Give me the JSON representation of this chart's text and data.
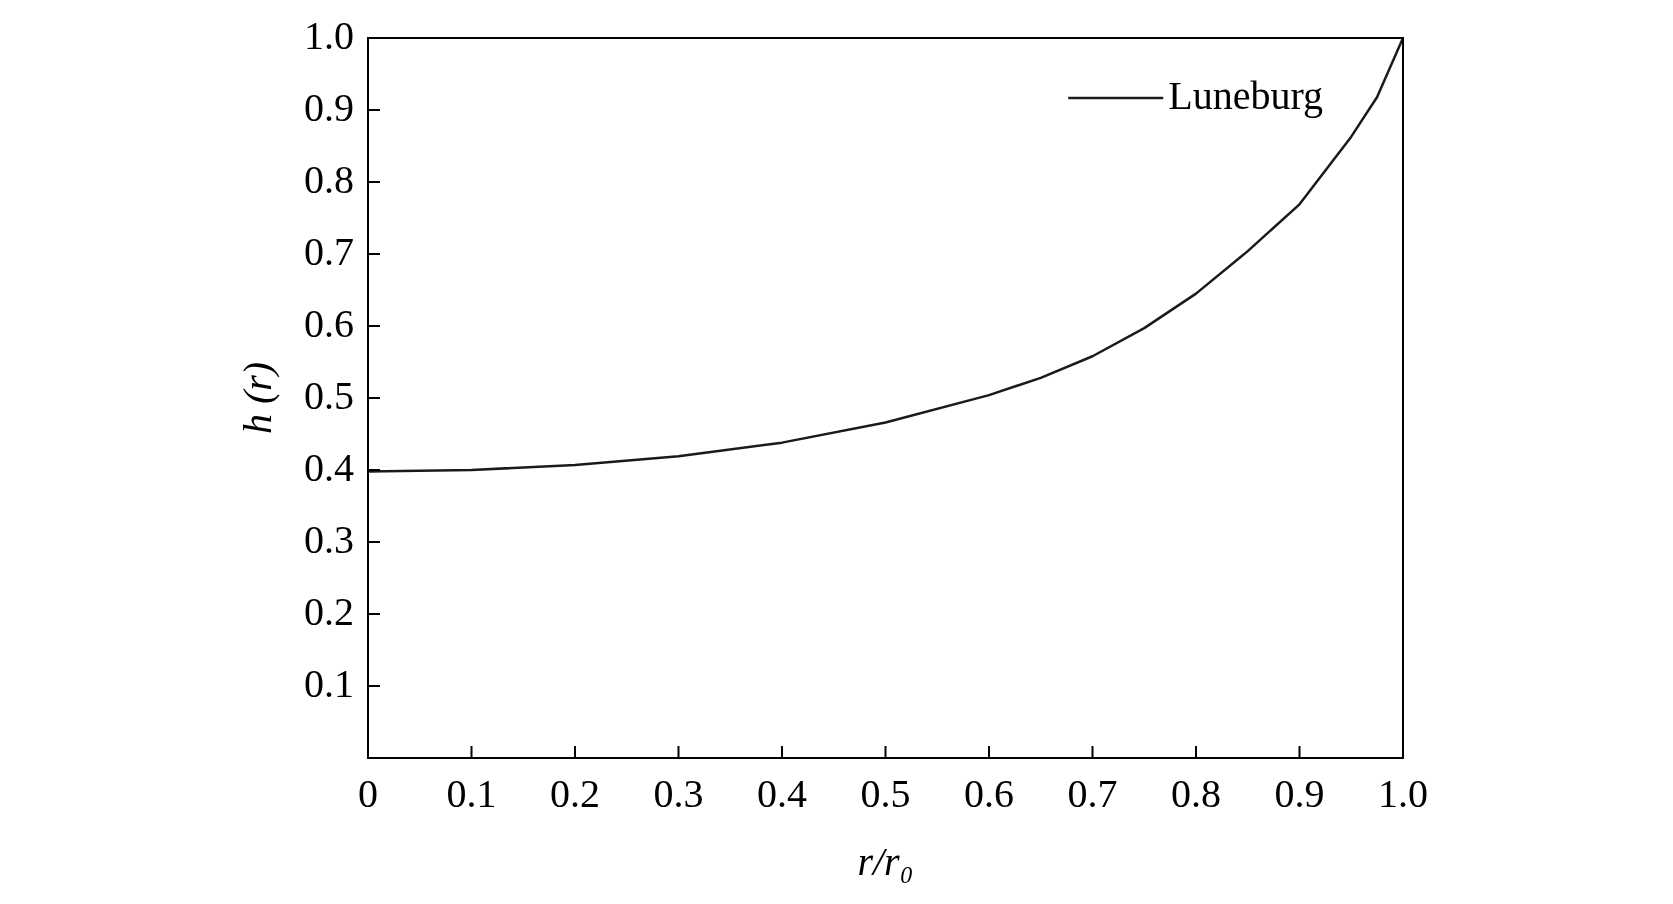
{
  "chart_data": {
    "type": "line",
    "xlabel": "r/r₀",
    "ylabel": "h (r)",
    "legend": "top right",
    "grid": false,
    "marker": "none",
    "line_style": "solid",
    "xlim": [
      0,
      1
    ],
    "ylim": [
      0,
      1
    ],
    "xticks": [
      0,
      0.1,
      0.2,
      0.3,
      0.4,
      0.5,
      0.6,
      0.7,
      0.8,
      0.9,
      {
        "value": 1,
        "label": "1.0"
      }
    ],
    "yticks": [
      0.1,
      0.2,
      0.3,
      0.4,
      0.5,
      0.6,
      0.7,
      0.8,
      0.9,
      {
        "value": 1,
        "label": "1.0"
      }
    ],
    "series": [
      {
        "name": "Luneburg",
        "color": "#1a1a1a",
        "x": [
          0,
          0.1,
          0.2,
          0.3,
          0.4,
          0.5,
          0.6,
          0.65,
          0.7,
          0.75,
          0.8,
          0.85,
          0.9,
          0.95,
          0.975,
          1.0
        ],
        "values": [
          0.398,
          0.4,
          0.407,
          0.419,
          0.438,
          0.466,
          0.504,
          0.528,
          0.558,
          0.597,
          0.645,
          0.704,
          0.769,
          0.863,
          0.918,
          1.0
        ]
      }
    ]
  }
}
